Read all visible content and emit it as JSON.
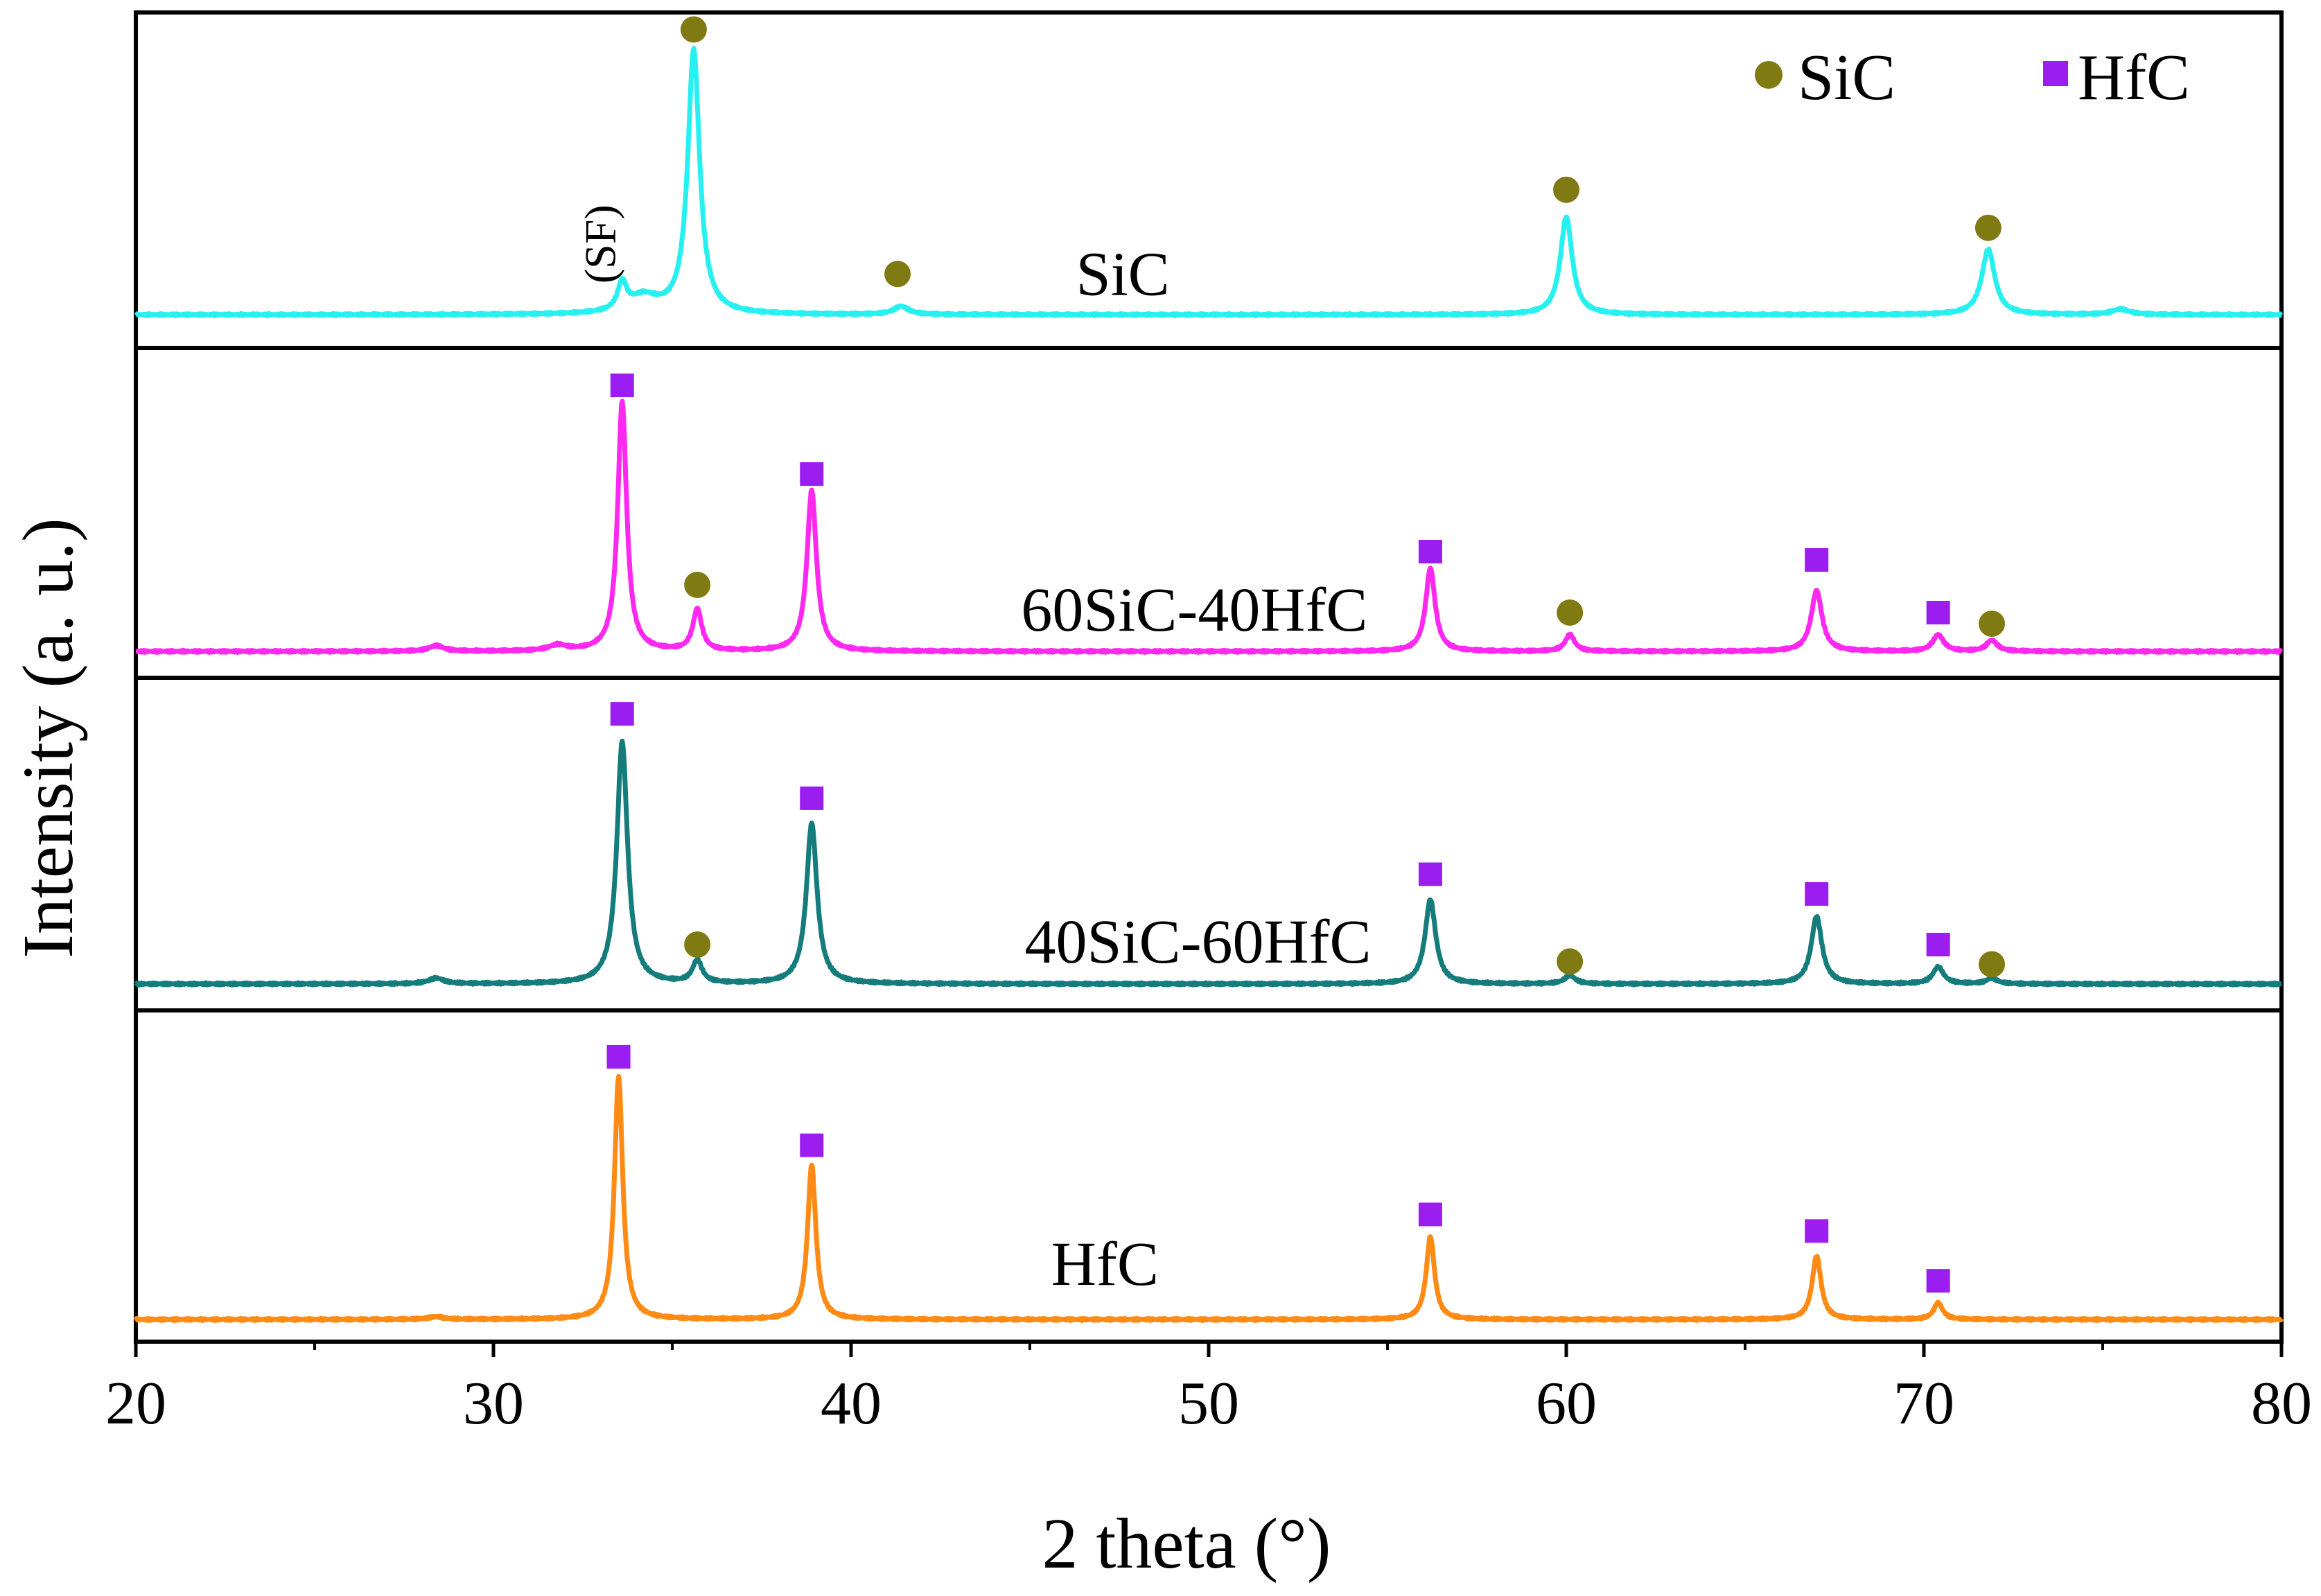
{
  "chart_data": {
    "type": "line",
    "title": "",
    "xlabel": "2 theta (°)",
    "ylabel": "Intensity (a. u.)",
    "xlim": [
      20,
      80
    ],
    "xticks": [
      20,
      30,
      40,
      50,
      60,
      70,
      80
    ],
    "xtick_labels": [
      "20",
      "30",
      "40",
      "50",
      "60",
      "70",
      "80"
    ],
    "grid": false,
    "legend": {
      "position": "top-right",
      "entries": [
        {
          "label": "SiC",
          "marker": "circle",
          "color": "#7f7a12"
        },
        {
          "label": "HfC",
          "marker": "square",
          "color": "#9b1ef0"
        }
      ]
    },
    "panels": [
      {
        "name": "SiC",
        "label": "SiC",
        "color": "#26f0f0",
        "label_x": 47.6,
        "label_level": 0.17,
        "baseline": 0.02,
        "peaks": [
          {
            "x": 33.6,
            "h": 0.1,
            "w": 0.15
          },
          {
            "x": 34.2,
            "h": 0.06,
            "w": 0.5
          },
          {
            "x": 35.6,
            "h": 0.97,
            "w": 0.2
          },
          {
            "x": 41.4,
            "h": 0.03,
            "w": 0.25
          },
          {
            "x": 60.0,
            "h": 0.36,
            "w": 0.2
          },
          {
            "x": 71.8,
            "h": 0.24,
            "w": 0.22
          },
          {
            "x": 75.5,
            "h": 0.02,
            "w": 0.3
          }
        ],
        "markers": [
          {
            "phase": "SiC",
            "x": 35.6,
            "h": 1.07
          },
          {
            "phase": "SiC",
            "x": 41.3,
            "h": 0.17
          },
          {
            "phase": "SiC",
            "x": 60.0,
            "h": 0.48
          },
          {
            "phase": "SiC",
            "x": 71.8,
            "h": 0.34
          }
        ]
      },
      {
        "name": "60SiC-40HfC",
        "label": "60SiC-40HfC",
        "color": "#ff28f0",
        "label_x": 49.6,
        "label_level": 0.17,
        "baseline": 0.02,
        "peaks": [
          {
            "x": 28.4,
            "h": 0.02,
            "w": 0.25
          },
          {
            "x": 31.8,
            "h": 0.02,
            "w": 0.3
          },
          {
            "x": 33.6,
            "h": 0.9,
            "w": 0.15
          },
          {
            "x": 35.7,
            "h": 0.15,
            "w": 0.15
          },
          {
            "x": 38.9,
            "h": 0.58,
            "w": 0.16
          },
          {
            "x": 56.2,
            "h": 0.3,
            "w": 0.16
          },
          {
            "x": 60.1,
            "h": 0.06,
            "w": 0.16
          },
          {
            "x": 67.0,
            "h": 0.22,
            "w": 0.18
          },
          {
            "x": 70.4,
            "h": 0.06,
            "w": 0.18
          },
          {
            "x": 71.9,
            "h": 0.04,
            "w": 0.18
          }
        ],
        "markers": [
          {
            "phase": "HfC",
            "x": 33.6,
            "h": 0.98
          },
          {
            "phase": "SiC",
            "x": 35.7,
            "h": 0.26
          },
          {
            "phase": "HfC",
            "x": 38.9,
            "h": 0.66
          },
          {
            "phase": "HfC",
            "x": 56.2,
            "h": 0.38
          },
          {
            "phase": "SiC",
            "x": 60.1,
            "h": 0.16
          },
          {
            "phase": "HfC",
            "x": 67.0,
            "h": 0.35
          },
          {
            "phase": "HfC",
            "x": 70.4,
            "h": 0.16
          },
          {
            "phase": "SiC",
            "x": 71.9,
            "h": 0.12
          }
        ]
      },
      {
        "name": "40SiC-60HfC",
        "label": "40SiC-60HfC",
        "color": "#157c7c",
        "label_x": 49.7,
        "label_level": 0.17,
        "baseline": 0.02,
        "peaks": [
          {
            "x": 28.4,
            "h": 0.02,
            "w": 0.25
          },
          {
            "x": 33.6,
            "h": 0.86,
            "w": 0.18
          },
          {
            "x": 35.7,
            "h": 0.08,
            "w": 0.16
          },
          {
            "x": 38.9,
            "h": 0.57,
            "w": 0.18
          },
          {
            "x": 56.2,
            "h": 0.3,
            "w": 0.18
          },
          {
            "x": 60.1,
            "h": 0.03,
            "w": 0.18
          },
          {
            "x": 67.0,
            "h": 0.24,
            "w": 0.18
          },
          {
            "x": 70.4,
            "h": 0.06,
            "w": 0.18
          },
          {
            "x": 71.9,
            "h": 0.02,
            "w": 0.18
          }
        ],
        "markers": [
          {
            "phase": "HfC",
            "x": 33.6,
            "h": 0.98
          },
          {
            "phase": "SiC",
            "x": 35.7,
            "h": 0.16
          },
          {
            "phase": "HfC",
            "x": 38.9,
            "h": 0.68
          },
          {
            "phase": "HfC",
            "x": 56.2,
            "h": 0.41
          },
          {
            "phase": "SiC",
            "x": 60.1,
            "h": 0.1
          },
          {
            "phase": "HfC",
            "x": 67.0,
            "h": 0.34
          },
          {
            "phase": "HfC",
            "x": 70.4,
            "h": 0.16
          },
          {
            "phase": "SiC",
            "x": 71.9,
            "h": 0.09
          }
        ]
      },
      {
        "name": "HfC",
        "label": "HfC",
        "color": "#ff8a14",
        "label_x": 47.1,
        "label_level": 0.22,
        "baseline": 0.02,
        "peaks": [
          {
            "x": 28.4,
            "h": 0.01,
            "w": 0.25
          },
          {
            "x": 33.5,
            "h": 0.88,
            "w": 0.14
          },
          {
            "x": 38.9,
            "h": 0.56,
            "w": 0.14
          },
          {
            "x": 56.2,
            "h": 0.3,
            "w": 0.14
          },
          {
            "x": 67.0,
            "h": 0.23,
            "w": 0.15
          },
          {
            "x": 70.4,
            "h": 0.06,
            "w": 0.15
          }
        ],
        "markers": [
          {
            "phase": "HfC",
            "x": 33.5,
            "h": 0.97
          },
          {
            "phase": "HfC",
            "x": 38.9,
            "h": 0.65
          },
          {
            "phase": "HfC",
            "x": 56.2,
            "h": 0.4
          },
          {
            "phase": "HfC",
            "x": 67.0,
            "h": 0.34
          },
          {
            "phase": "HfC",
            "x": 70.4,
            "h": 0.16
          }
        ]
      }
    ],
    "annotations": [
      {
        "text": "(SF)",
        "panel": "SiC",
        "x": 33.4,
        "level": 0.28,
        "rotation": -90
      }
    ]
  }
}
